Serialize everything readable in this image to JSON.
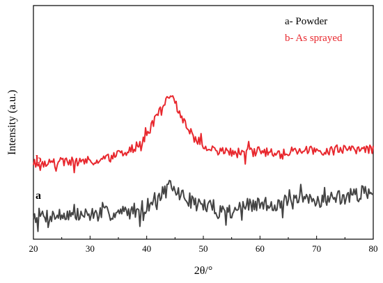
{
  "chart_data": {
    "type": "line",
    "xlabel": "2θ/°",
    "ylabel": "Intensity (a.u.)",
    "xlim": [
      20,
      80
    ],
    "xticks": [
      "20",
      "30",
      "40",
      "50",
      "60",
      "70",
      "80"
    ],
    "yticks_shown": false,
    "grid": false,
    "legend": {
      "placement": "top-right",
      "entries": [
        {
          "text": "a- Powder",
          "color": "#000000"
        },
        {
          "text": "b- As sprayed",
          "color": "#e8282e"
        }
      ]
    },
    "series": [
      {
        "label": "a",
        "color": "#444444",
        "x": [
          20,
          22,
          24,
          26,
          28,
          30,
          32,
          34,
          36,
          38,
          40,
          42,
          43,
          44,
          45,
          46,
          48,
          50,
          52,
          54,
          56,
          58,
          60,
          62,
          64,
          66,
          68,
          70,
          72,
          74,
          76,
          78,
          80
        ],
        "y": [
          -5,
          -5,
          -5,
          -4,
          -5,
          -4,
          -4,
          -3,
          -3,
          -1,
          2,
          8,
          12,
          15,
          13,
          10,
          5,
          2,
          0,
          -2,
          0,
          2,
          3,
          3,
          4,
          5,
          6,
          6,
          7,
          8,
          9,
          11,
          13
        ]
      },
      {
        "label": "b",
        "color": "#e8282e",
        "x": [
          20,
          22,
          24,
          26,
          28,
          30,
          32,
          34,
          36,
          38,
          40,
          41,
          42,
          43,
          44,
          45,
          46,
          47,
          48,
          50,
          52,
          54,
          56,
          58,
          60,
          62,
          64,
          66,
          68,
          70,
          72,
          74,
          76,
          78,
          80
        ],
        "y": [
          33,
          33,
          33,
          34,
          34,
          34,
          35,
          37,
          40,
          44,
          52,
          60,
          68,
          76,
          80,
          76,
          68,
          60,
          52,
          45,
          42,
          41,
          40,
          40,
          41,
          41,
          41,
          41,
          42,
          42,
          42,
          43,
          43,
          43,
          43
        ]
      }
    ]
  }
}
